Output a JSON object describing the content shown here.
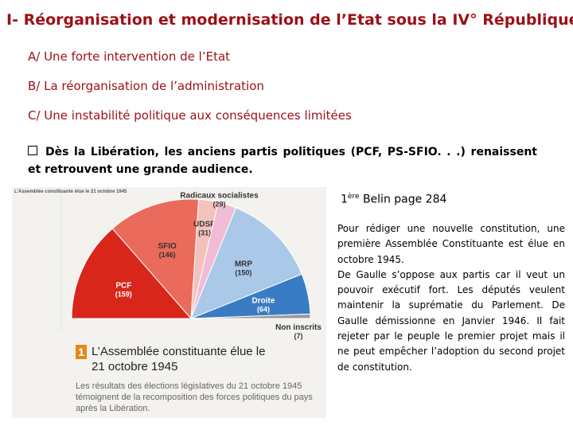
{
  "title": "I- Réorganisation et modernisation de l’Etat sous la IV° République",
  "headings": [
    "A/ Une forte intervention de l’Etat",
    "B/ La réorganisation de l’administration",
    "C/ Une instabilité politique aux conséquences limitées"
  ],
  "bullet": "Dès la Libération, les anciens partis politiques (PCF, PS-SFIO. . .) renaissent et retrouvent une grande audience.",
  "figure": {
    "header": "L’Assemblée constituante élue le 21 octobre 1945",
    "number": "1",
    "caption_title": "L’Assemblée constituante élue le 21 octobre 1945",
    "caption_text": "Les résultats des élections législatives du 21 octobre 1945 témoignent de la recomposition des forces politiques du pays après la Libération.",
    "parties": [
      {
        "name": "PCF",
        "seats": 159,
        "seats_label": "(159)",
        "color": "#d8261b"
      },
      {
        "name": "SFIO",
        "seats": 146,
        "seats_label": "(146)",
        "color": "#ea6b5b"
      },
      {
        "name": "UDSR",
        "seats": 31,
        "seats_label": "(31)",
        "color": "#f4c2bd"
      },
      {
        "name": "Radicaux socialistes",
        "seats": 29,
        "seats_label": "(29)",
        "color": "#f1bcd6"
      },
      {
        "name": "MRP",
        "seats": 150,
        "seats_label": "(150)",
        "color": "#aac8e8"
      },
      {
        "name": "Droite",
        "seats": 64,
        "seats_label": "(64)",
        "color": "#3a7cc3"
      },
      {
        "name": "Non inscrits",
        "seats": 7,
        "seats_label": "(7)",
        "color": "#9a9a9a"
      }
    ]
  },
  "reference": {
    "number": "1",
    "superscript": "ère",
    "text": " Belin page 284"
  },
  "paragraphs": [
    "Pour rédiger une nouvelle constitution, une première Assemblée Constituante est élue en octobre 1945.",
    "De Gaulle s’oppose aux partis car il veut un pouvoir exécutif fort. Les députés veulent maintenir la suprématie du Parlement. De Gaulle démissionne en Janvier 1946. Il fait rejeter par le peuple le premier projet mais il ne peut empêcher l’adoption du second projet de constitution."
  ]
}
